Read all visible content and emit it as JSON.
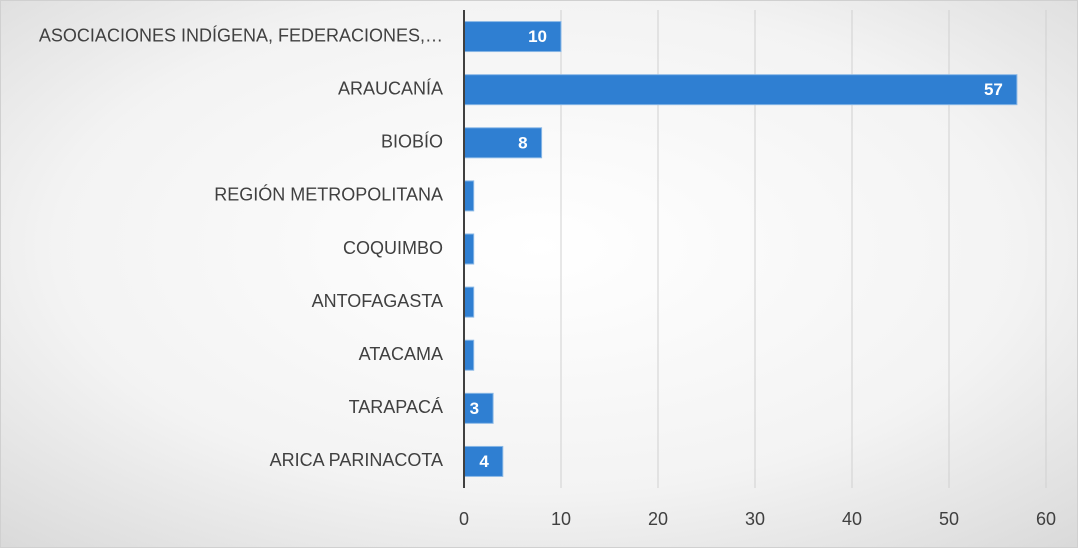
{
  "chart_data": {
    "type": "hbar",
    "categories": [
      "ASOCIACIONES INDÍGENA, FEDERACIONES,…",
      "ARAUCANÍA",
      "BIOBÍO",
      "REGIÓN METROPOLITANA",
      "COQUIMBO",
      "ANTOFAGASTA",
      "ATACAMA",
      "TARAPACÁ",
      "ARICA PARINACOTA"
    ],
    "values": [
      10,
      57,
      8,
      1,
      1,
      1,
      1,
      3,
      4
    ],
    "value_labels": [
      "10",
      "57",
      "8",
      null,
      null,
      null,
      null,
      "3",
      "4"
    ],
    "color": "#2f7fd2",
    "xlim": [
      0,
      60
    ],
    "xticks": [
      0,
      10,
      20,
      30,
      40,
      50,
      60
    ],
    "grid": true
  }
}
